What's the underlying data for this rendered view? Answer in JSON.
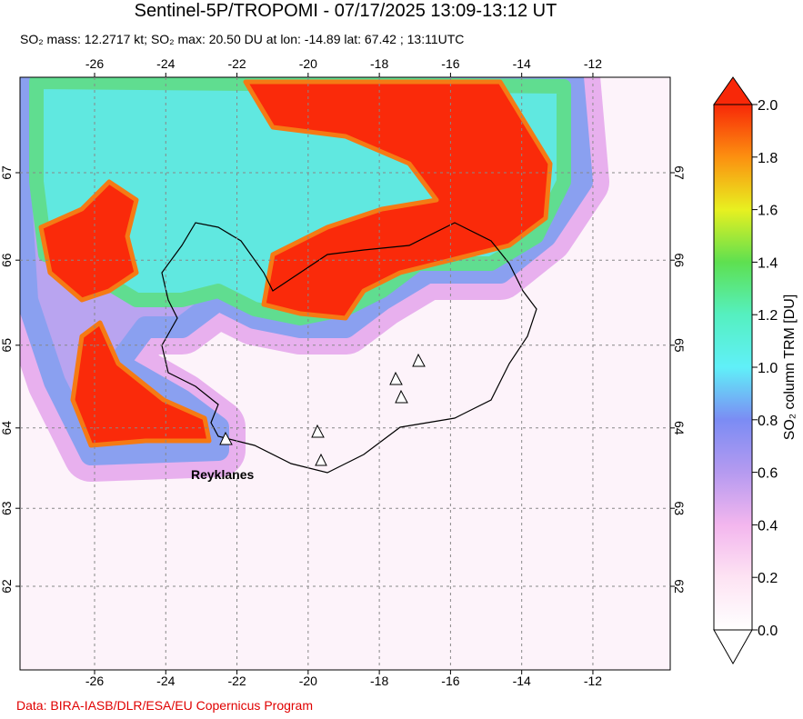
{
  "title": "Sentinel-5P/TROPOMI - 07/17/2025 13:09-13:12 UT",
  "subtitle": "SO₂ mass: 12.2717 kt; SO₂ max: 20.50 DU at lon: -14.89 lat: 67.42 ; 13:11UTC",
  "map": {
    "lon_ticks": [
      -26,
      -24,
      -22,
      -20,
      -18,
      -16,
      -14,
      -12
    ],
    "lat_ticks": [
      62,
      63,
      64,
      65,
      66,
      67
    ],
    "label": "Reyklanes"
  },
  "colorbar": {
    "label": "SO₂ column TRM [DU]",
    "ticks": [
      {
        "value": 0,
        "label": "0.0"
      },
      {
        "value": 0.2,
        "label": "0.2"
      },
      {
        "value": 0.4,
        "label": "0.4"
      },
      {
        "value": 0.6,
        "label": "0.6"
      },
      {
        "value": 0.8,
        "label": "0.8"
      },
      {
        "value": 1,
        "label": "1.0"
      },
      {
        "value": 1.2,
        "label": "1.2"
      },
      {
        "value": 1.4,
        "label": "1.4"
      },
      {
        "value": 1.6,
        "label": "1.6"
      },
      {
        "value": 1.8,
        "label": "1.8"
      },
      {
        "value": 2,
        "label": "2.0"
      }
    ]
  },
  "footer": "Data: BIRA-IASB/DLR/ESA/EU Copernicus Program"
}
